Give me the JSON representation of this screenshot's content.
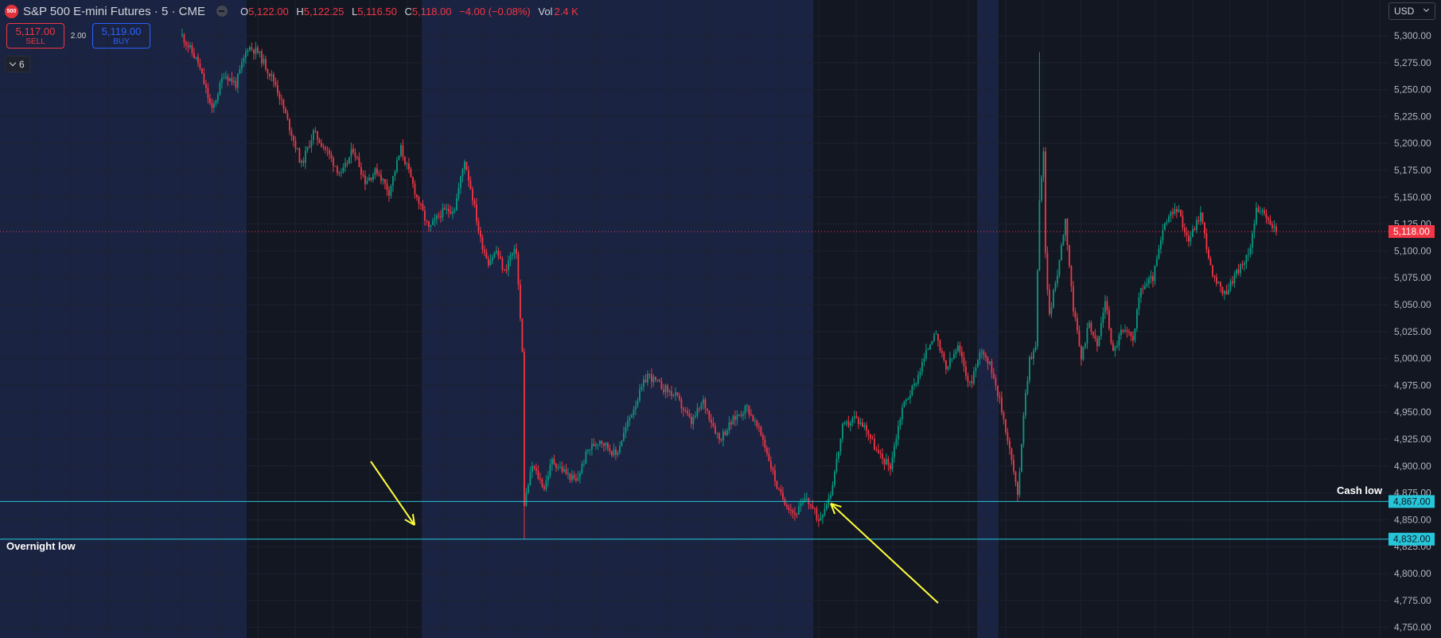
{
  "header": {
    "logo_text": "500",
    "symbol": "S&P 500 E-mini Futures · 5 · CME",
    "open_label": "O",
    "open": "5,122.00",
    "high_label": "H",
    "high": "5,122.25",
    "low_label": "L",
    "low": "5,116.50",
    "close_label": "C",
    "close": "5,118.00",
    "change": "−4.00 (−0.08%)",
    "vol_label": "Vol",
    "vol": "2.4 K"
  },
  "trade": {
    "sell_price": "5,117.00",
    "sell_label": "SELL",
    "spread": "2.00",
    "buy_price": "5,119.00",
    "buy_label": "BUY"
  },
  "indicators_toggle": {
    "count": "6"
  },
  "currency": "USD",
  "colors": {
    "background": "#131722",
    "session_shade": "#1a2341",
    "grid": "#1e2230",
    "up": "#089981",
    "down": "#f23645",
    "hline": "#26c6da",
    "arrow": "#ffff3a",
    "price_line": "#f23645"
  },
  "chart_data": {
    "type": "candlestick",
    "y_axis": {
      "range": [
        4740,
        5320
      ],
      "ticks": [
        5300,
        5275,
        5250,
        5225,
        5200,
        5175,
        5150,
        5125,
        5100,
        5075,
        5050,
        5025,
        5000,
        4975,
        4950,
        4925,
        4900,
        4875,
        4850,
        4825,
        4800,
        4775,
        4750
      ],
      "tick_labels": [
        "5,300.00",
        "5,275.00",
        "5,250.00",
        "5,225.00",
        "5,200.00",
        "5,175.00",
        "5,150.00",
        "5,125.00",
        "5,100.00",
        "5,075.00",
        "5,050.00",
        "5,025.00",
        "5,000.00",
        "4,975.00",
        "4,950.00",
        "4,925.00",
        "4,900.00",
        "4,875.00",
        "4,850.00",
        "4,825.00",
        "4,800.00",
        "4,775.00",
        "4,750.00"
      ]
    },
    "last_price": 5118,
    "last_price_label": "5,118.00",
    "horizontal_lines": [
      {
        "value": 4867,
        "label": "4,867.00",
        "note": "Cash low"
      },
      {
        "value": 4832,
        "label": "4,832.00",
        "note": "Overnight low"
      }
    ],
    "path_anchors": [
      [
        0,
        5300
      ],
      [
        8,
        5275
      ],
      [
        15,
        5230
      ],
      [
        21,
        5265
      ],
      [
        27,
        5255
      ],
      [
        33,
        5290
      ],
      [
        38,
        5285
      ],
      [
        47,
        5255
      ],
      [
        54,
        5215
      ],
      [
        60,
        5180
      ],
      [
        66,
        5210
      ],
      [
        72,
        5195
      ],
      [
        80,
        5170
      ],
      [
        86,
        5195
      ],
      [
        92,
        5165
      ],
      [
        98,
        5175
      ],
      [
        104,
        5155
      ],
      [
        110,
        5195
      ],
      [
        118,
        5150
      ],
      [
        124,
        5120
      ],
      [
        130,
        5135
      ],
      [
        137,
        5140
      ],
      [
        142,
        5185
      ],
      [
        146,
        5150
      ],
      [
        150,
        5110
      ],
      [
        154,
        5090
      ],
      [
        158,
        5100
      ],
      [
        162,
        5080
      ],
      [
        165,
        5095
      ],
      [
        168,
        5100
      ],
      [
        171,
        5005
      ],
      [
        172,
        4865
      ],
      [
        176,
        4900
      ],
      [
        182,
        4880
      ],
      [
        186,
        4905
      ],
      [
        192,
        4895
      ],
      [
        198,
        4885
      ],
      [
        204,
        4915
      ],
      [
        210,
        4925
      ],
      [
        218,
        4910
      ],
      [
        226,
        4950
      ],
      [
        234,
        4985
      ],
      [
        240,
        4975
      ],
      [
        248,
        4965
      ],
      [
        256,
        4940
      ],
      [
        262,
        4960
      ],
      [
        270,
        4925
      ],
      [
        278,
        4945
      ],
      [
        284,
        4955
      ],
      [
        292,
        4925
      ],
      [
        300,
        4875
      ],
      [
        308,
        4855
      ],
      [
        314,
        4870
      ],
      [
        320,
        4850
      ],
      [
        326,
        4875
      ],
      [
        332,
        4935
      ],
      [
        338,
        4945
      ],
      [
        344,
        4935
      ],
      [
        350,
        4910
      ],
      [
        356,
        4900
      ],
      [
        362,
        4955
      ],
      [
        368,
        4975
      ],
      [
        372,
        4995
      ],
      [
        378,
        5025
      ],
      [
        384,
        4990
      ],
      [
        390,
        5010
      ],
      [
        396,
        4975
      ],
      [
        402,
        5010
      ],
      [
        408,
        4985
      ],
      [
        414,
        4935
      ],
      [
        418,
        4895
      ],
      [
        420,
        4870
      ],
      [
        423,
        4950
      ],
      [
        426,
        5000
      ],
      [
        429,
        5010
      ],
      [
        431,
        5150
      ],
      [
        433,
        5190
      ],
      [
        434,
        5095
      ],
      [
        436,
        5040
      ],
      [
        440,
        5080
      ],
      [
        444,
        5130
      ],
      [
        448,
        5045
      ],
      [
        452,
        5000
      ],
      [
        456,
        5035
      ],
      [
        460,
        5010
      ],
      [
        464,
        5055
      ],
      [
        468,
        5005
      ],
      [
        472,
        5025
      ],
      [
        478,
        5020
      ],
      [
        482,
        5065
      ],
      [
        488,
        5075
      ],
      [
        494,
        5125
      ],
      [
        500,
        5140
      ],
      [
        506,
        5110
      ],
      [
        512,
        5135
      ],
      [
        518,
        5075
      ],
      [
        524,
        5060
      ],
      [
        530,
        5080
      ],
      [
        536,
        5095
      ],
      [
        540,
        5140
      ],
      [
        545,
        5130
      ],
      [
        550,
        5118
      ]
    ]
  },
  "annotations": {
    "cash_low": "Cash low",
    "overnight_low": "Overnight low"
  }
}
